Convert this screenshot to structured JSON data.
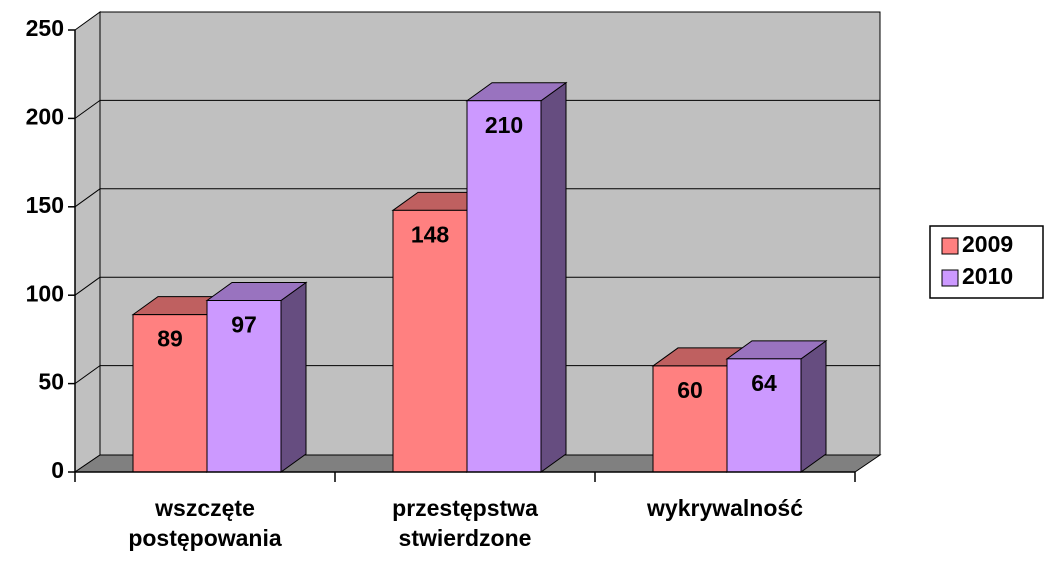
{
  "chart_data": {
    "type": "bar3d",
    "categories": [
      "wszczęte postępowania",
      "przestępstwa stwierdzone",
      "wykrywalność"
    ],
    "series": [
      {
        "name": "2009",
        "color": "#ff8080",
        "values": [
          89,
          148,
          60
        ]
      },
      {
        "name": "2010",
        "color": "#cc99ff",
        "values": [
          97,
          210,
          64
        ]
      }
    ],
    "ylim": [
      0,
      250
    ],
    "yticks": [
      0,
      50,
      100,
      150,
      200,
      250
    ],
    "grid": true,
    "legend": "right"
  }
}
